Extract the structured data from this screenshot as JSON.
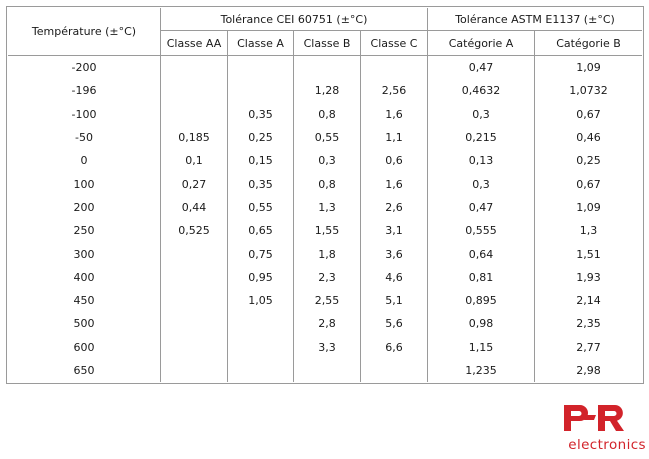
{
  "table": {
    "temp_header": "Température (±°C)",
    "group_cei": "Tolérance CEI 60751 (±°C)",
    "group_astm": "Tolérance ASTM E1137 (±°C)",
    "sub_headers": [
      "Classe AA",
      "Classe A",
      "Classe B",
      "Classe C",
      "Catégorie A",
      "Catégorie B"
    ],
    "rows": [
      [
        "-200",
        "",
        "",
        "",
        "",
        "0,47",
        "1,09"
      ],
      [
        "-196",
        "",
        "",
        "1,28",
        "2,56",
        "0,4632",
        "1,0732"
      ],
      [
        "-100",
        "",
        "0,35",
        "0,8",
        "1,6",
        "0,3",
        "0,67"
      ],
      [
        "-50",
        "0,185",
        "0,25",
        "0,55",
        "1,1",
        "0,215",
        "0,46"
      ],
      [
        "0",
        "0,1",
        "0,15",
        "0,3",
        "0,6",
        "0,13",
        "0,25"
      ],
      [
        "100",
        "0,27",
        "0,35",
        "0,8",
        "1,6",
        "0,3",
        "0,67"
      ],
      [
        "200",
        "0,44",
        "0,55",
        "1,3",
        "2,6",
        "0,47",
        "1,09"
      ],
      [
        "250",
        "0,525",
        "0,65",
        "1,55",
        "3,1",
        "0,555",
        "1,3"
      ],
      [
        "300",
        "",
        "0,75",
        "1,8",
        "3,6",
        "0,64",
        "1,51"
      ],
      [
        "400",
        "",
        "0,95",
        "2,3",
        "4,6",
        "0,81",
        "1,93"
      ],
      [
        "450",
        "",
        "1,05",
        "2,55",
        "5,1",
        "0,895",
        "2,14"
      ],
      [
        "500",
        "",
        "",
        "2,8",
        "5,6",
        "0,98",
        "2,35"
      ],
      [
        "600",
        "",
        "",
        "3,3",
        "6,6",
        "1,15",
        "2,77"
      ],
      [
        "650",
        "",
        "",
        "",
        "",
        "1,235",
        "2,98"
      ]
    ]
  },
  "logo": {
    "mark": "PR",
    "text": "electronics",
    "color": "#d2232a"
  }
}
